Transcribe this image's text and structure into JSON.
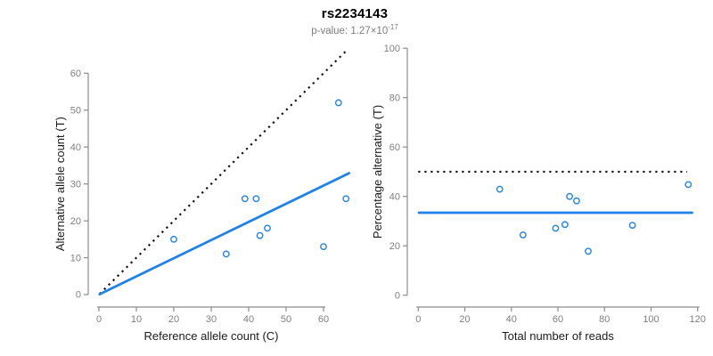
{
  "header": {
    "title": "rs2234143",
    "subtitle_prefix": "p-value: 1.27×10",
    "subtitle_exponent": "-17"
  },
  "colors": {
    "accent_blue": "#1E82E8",
    "axis_line_gray": "#8C8C8C",
    "tick_label_gray": "#7F7F7F",
    "axis_title_color": "#1A1A1A",
    "dotted_line_black": "#111111"
  },
  "chart_data": [
    {
      "type": "scatter",
      "name": "allele-count-scatter",
      "title": "",
      "xlabel": "Reference allele count (C)",
      "ylabel": "Alternative allele count (T)",
      "xticks": [
        0,
        10,
        20,
        30,
        40,
        50,
        60
      ],
      "yticks": [
        0,
        10,
        20,
        30,
        40,
        50,
        60
      ],
      "xlim": [
        0,
        67
      ],
      "ylim": [
        0,
        67
      ],
      "grid": false,
      "legend": null,
      "points": [
        [
          20,
          15
        ],
        [
          34,
          11
        ],
        [
          39,
          26
        ],
        [
          42,
          26
        ],
        [
          43,
          16
        ],
        [
          45,
          18
        ],
        [
          60,
          13
        ],
        [
          64,
          52
        ],
        [
          66,
          26
        ]
      ],
      "lines": [
        {
          "name": "expected-50pct-line",
          "style": "dotted",
          "color": "#111111",
          "x1": 0.2,
          "y1": 0.2,
          "x2": 66.6,
          "y2": 66.6
        },
        {
          "name": "observed-ratio-line",
          "style": "solid",
          "color": "#1E82E8",
          "x1": 0.2,
          "y1": 0.1,
          "x2": 66.8,
          "y2": 32.9
        }
      ]
    },
    {
      "type": "scatter",
      "name": "percentage-vs-reads-scatter",
      "title": "",
      "xlabel": "Total number of reads",
      "ylabel": "Percentage alternative (T)",
      "xticks": [
        0,
        20,
        40,
        60,
        80,
        100,
        120
      ],
      "yticks": [
        0,
        20,
        40,
        60,
        80,
        100
      ],
      "xlim": [
        0,
        122
      ],
      "ylim": [
        0,
        100
      ],
      "grid": false,
      "legend": null,
      "points": [
        [
          35,
          42.9
        ],
        [
          45,
          24.4
        ],
        [
          59,
          27.1
        ],
        [
          63,
          28.6
        ],
        [
          65,
          40.0
        ],
        [
          68,
          38.2
        ],
        [
          73,
          17.8
        ],
        [
          92,
          28.3
        ],
        [
          116,
          44.8
        ]
      ],
      "lines": [
        {
          "name": "expected-50pct-line",
          "style": "dotted",
          "color": "#111111",
          "x1": 0.0,
          "y1": 50,
          "x2": 115.5,
          "y2": 50
        },
        {
          "name": "mean-percentage-line",
          "style": "solid",
          "color": "#1E82E8",
          "x1": 0.3,
          "y1": 33.4,
          "x2": 117.6,
          "y2": 33.4
        }
      ]
    }
  ]
}
